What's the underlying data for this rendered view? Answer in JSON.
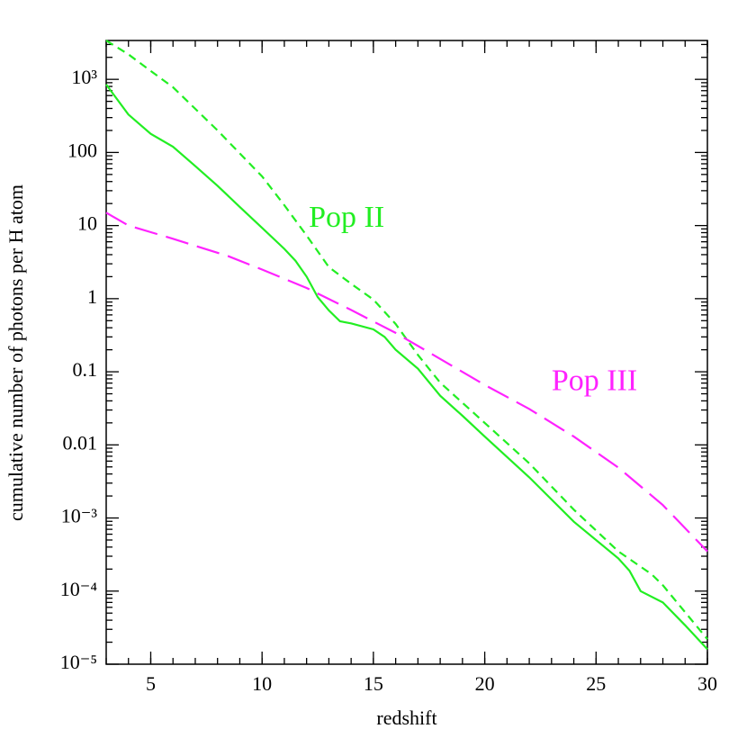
{
  "chart_data": {
    "type": "line",
    "x_label": "redshift",
    "y_label": "cumulative number of photons per H atom",
    "log_y": true,
    "minor_ticks": true,
    "xlim": [
      3,
      30
    ],
    "ylim": [
      1e-05,
      3400
    ],
    "xticks": [
      5,
      10,
      15,
      20,
      25,
      30
    ],
    "yticks": [
      {
        "value": 1e-05,
        "label": "10⁻⁵"
      },
      {
        "value": 0.0001,
        "label": "10⁻⁴"
      },
      {
        "value": 0.001,
        "label": "10⁻³"
      },
      0.01,
      0.1,
      1,
      10,
      100,
      {
        "value": 1000,
        "label": "10³"
      }
    ],
    "series": [
      {
        "color": "#22ee22",
        "style": "solid",
        "x": [
          3,
          4,
          5,
          6,
          7,
          8,
          9,
          10,
          11,
          11.5,
          12,
          12.5,
          13,
          13.5,
          14,
          15,
          15.5,
          16,
          17,
          18,
          19,
          20,
          22,
          24,
          26,
          26.5,
          27,
          28,
          29,
          30
        ],
        "values": [
          850,
          330,
          180,
          120,
          65,
          35,
          18,
          9.3,
          4.8,
          3.3,
          2.0,
          1.05,
          0.69,
          0.49,
          0.46,
          0.38,
          0.3,
          0.2,
          0.11,
          0.047,
          0.025,
          0.013,
          0.0036,
          0.00089,
          0.00028,
          0.00019,
          0.0001,
          7e-05,
          3.4e-05,
          1.6e-05
        ]
      },
      {
        "color": "#22ee22",
        "style": "dashed",
        "x": [
          3,
          4,
          5,
          6,
          8,
          10,
          11,
          12,
          13,
          14,
          15,
          16,
          17,
          18,
          20,
          22,
          24,
          26,
          27.5,
          28,
          30
        ],
        "values": [
          3400,
          2200,
          1300,
          780,
          200,
          47,
          19,
          7.3,
          2.7,
          1.6,
          0.97,
          0.45,
          0.17,
          0.071,
          0.02,
          0.0056,
          0.0013,
          0.00035,
          0.00017,
          0.00012,
          2.2e-05
        ]
      },
      {
        "color": "#ff22ff",
        "style": "longdash",
        "x": [
          3,
          4,
          6,
          8.5,
          10,
          12,
          14,
          16,
          18,
          20,
          22,
          24,
          26,
          28,
          30
        ],
        "values": [
          15,
          10,
          6.6,
          3.8,
          2.5,
          1.4,
          0.7,
          0.34,
          0.15,
          0.066,
          0.031,
          0.013,
          0.0049,
          0.0015,
          0.00035
        ]
      }
    ],
    "annotations": [
      {
        "text": "Pop II",
        "x": 12.1,
        "y": 12,
        "color": "#22ee22"
      },
      {
        "text": "Pop III",
        "x": 23,
        "y": 0.07,
        "color": "#ff22ff"
      }
    ]
  }
}
